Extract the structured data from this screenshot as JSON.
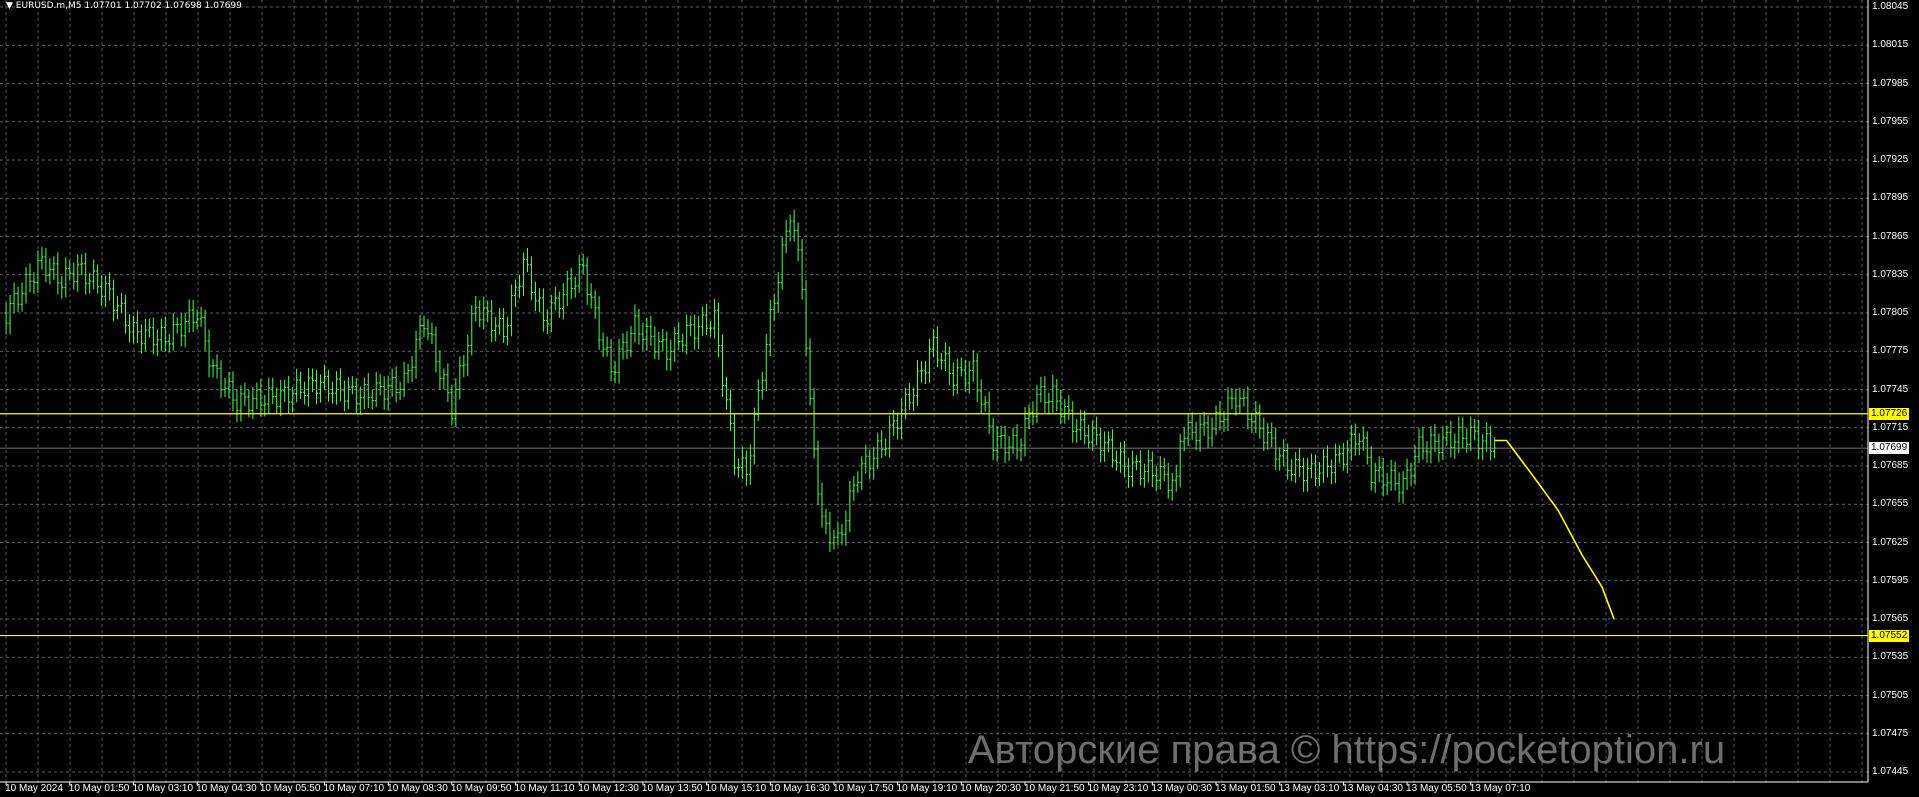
{
  "header": {
    "symbol_line": "EURUSD.m,M5  1.07701 1.07702 1.07698 1.07699",
    "menu_icon": "triangle-down-icon"
  },
  "watermark": "Авторские права © https://pocketoption.ru",
  "colors": {
    "background": "#000000",
    "grid": "#7a7a7a",
    "bars": "#4cff4c",
    "level_lines": "#ffff00",
    "bid_line": "#a0a0a0",
    "axis_text": "#ffffff"
  },
  "chart_data": {
    "type": "ohlc-bar",
    "symbol": "EURUSD.m",
    "timeframe": "M5",
    "last_bar": {
      "open": 1.07701,
      "high": 1.07702,
      "low": 1.07698,
      "close": 1.07699
    },
    "ylim": [
      1.07445,
      1.08045
    ],
    "grid": true,
    "y_ticks": [
      "1.08045",
      "1.08015",
      "1.07985",
      "1.07955",
      "1.07925",
      "1.07895",
      "1.07865",
      "1.07835",
      "1.07805",
      "1.07775",
      "1.07745",
      "1.07715",
      "1.07685",
      "1.07655",
      "1.07625",
      "1.07595",
      "1.07565",
      "1.07535",
      "1.07505",
      "1.07475",
      "1.07445"
    ],
    "x_ticks": [
      "10 May 2024",
      "10 May 01:50",
      "10 May 03:10",
      "10 May 04:30",
      "10 May 05:50",
      "10 May 07:10",
      "10 May 08:30",
      "10 May 09:50",
      "10 May 11:10",
      "10 May 12:30",
      "10 May 13:50",
      "10 May 15:10",
      "10 May 16:30",
      "10 May 17:50",
      "10 May 19:10",
      "10 May 20:30",
      "10 May 21:50",
      "10 May 23:10",
      "13 May 00:30",
      "13 May 01:50",
      "13 May 03:10",
      "13 May 04:30",
      "13 May 05:50",
      "13 May 07:10"
    ],
    "price_path": [
      [
        "10 May 00:30",
        1.07805
      ],
      [
        "10 May 01:15",
        1.07845
      ],
      [
        "10 May 01:40",
        1.0783
      ],
      [
        "10 May 02:00",
        1.0784
      ],
      [
        "10 May 02:40",
        1.0782
      ],
      [
        "10 May 03:10",
        1.0779
      ],
      [
        "10 May 03:50",
        1.07785
      ],
      [
        "10 May 04:30",
        1.07805
      ],
      [
        "10 May 04:50",
        1.0776
      ],
      [
        "10 May 05:20",
        1.07735
      ],
      [
        "10 May 06:15",
        1.0774
      ],
      [
        "10 May 07:00",
        1.0775
      ],
      [
        "10 May 07:55",
        1.0774
      ],
      [
        "10 May 08:50",
        1.0775
      ],
      [
        "10 May 09:15",
        1.078
      ],
      [
        "10 May 09:50",
        1.0773
      ],
      [
        "10 May 10:20",
        1.0781
      ],
      [
        "10 May 10:55",
        1.0779
      ],
      [
        "10 May 11:20",
        1.07845
      ],
      [
        "10 May 11:45",
        1.078
      ],
      [
        "10 May 12:35",
        1.0784
      ],
      [
        "10 May 12:55",
        1.0779
      ],
      [
        "10 May 13:10",
        1.0776
      ],
      [
        "10 May 13:40",
        1.07795
      ],
      [
        "10 May 14:20",
        1.07775
      ],
      [
        "10 May 14:45",
        1.0779
      ],
      [
        "10 May 15:20",
        1.078
      ],
      [
        "10 May 15:45",
        1.0769
      ],
      [
        "10 May 16:00",
        1.0768
      ],
      [
        "10 May 16:30",
        1.078
      ],
      [
        "10 May 16:55",
        1.07885
      ],
      [
        "10 May 17:10",
        1.0783
      ],
      [
        "10 May 17:20",
        1.0773
      ],
      [
        "10 May 17:35",
        1.0764
      ],
      [
        "10 May 17:55",
        1.07625
      ],
      [
        "10 May 18:20",
        1.0768
      ],
      [
        "10 May 18:50",
        1.077
      ],
      [
        "10 May 19:30",
        1.07745
      ],
      [
        "10 May 19:55",
        1.0778
      ],
      [
        "10 May 20:20",
        1.07755
      ],
      [
        "10 May 20:45",
        1.0776
      ],
      [
        "10 May 21:10",
        1.07705
      ],
      [
        "10 May 21:40",
        1.077
      ],
      [
        "10 May 22:05",
        1.0774
      ],
      [
        "10 May 22:25",
        1.0774
      ],
      [
        "10 May 22:55",
        1.07715
      ],
      [
        "10 May 23:25",
        1.07705
      ],
      [
        "10 May 23:55",
        1.07685
      ],
      [
        "13 May 00:35",
        1.0768
      ],
      [
        "13 May 01:00",
        1.0767
      ],
      [
        "13 May 01:05",
        1.0771
      ],
      [
        "13 May 01:45",
        1.07715
      ],
      [
        "13 May 02:15",
        1.0774
      ],
      [
        "13 May 02:45",
        1.07715
      ],
      [
        "13 May 03:20",
        1.07685
      ],
      [
        "13 May 03:50",
        1.0768
      ],
      [
        "13 May 04:25",
        1.0769
      ],
      [
        "13 May 04:50",
        1.0771
      ],
      [
        "13 May 05:05",
        1.0768
      ],
      [
        "13 May 05:45",
        1.0767
      ],
      [
        "13 May 06:05",
        1.077
      ],
      [
        "13 May 06:40",
        1.07705
      ],
      [
        "13 May 07:10",
        1.0771
      ],
      [
        "13 May 07:40",
        1.07699
      ]
    ],
    "horizontal_levels": [
      {
        "price": 1.07726,
        "label": "1.07726",
        "color": "#ffff00"
      },
      {
        "price": 1.07552,
        "label": "1.07552",
        "color": "#ffff00"
      }
    ],
    "bid_level": {
      "price": 1.07699,
      "label": "1.07699"
    },
    "forecast_curve": [
      [
        "13 May 07:40",
        1.07705
      ],
      [
        "13 May 07:55",
        1.07705
      ],
      [
        "13 May 08:25",
        1.0768
      ],
      [
        "13 May 09:00",
        1.0765
      ],
      [
        "13 May 09:30",
        1.07615
      ],
      [
        "13 May 09:55",
        1.0759
      ],
      [
        "13 May 10:10",
        1.07565
      ]
    ]
  }
}
